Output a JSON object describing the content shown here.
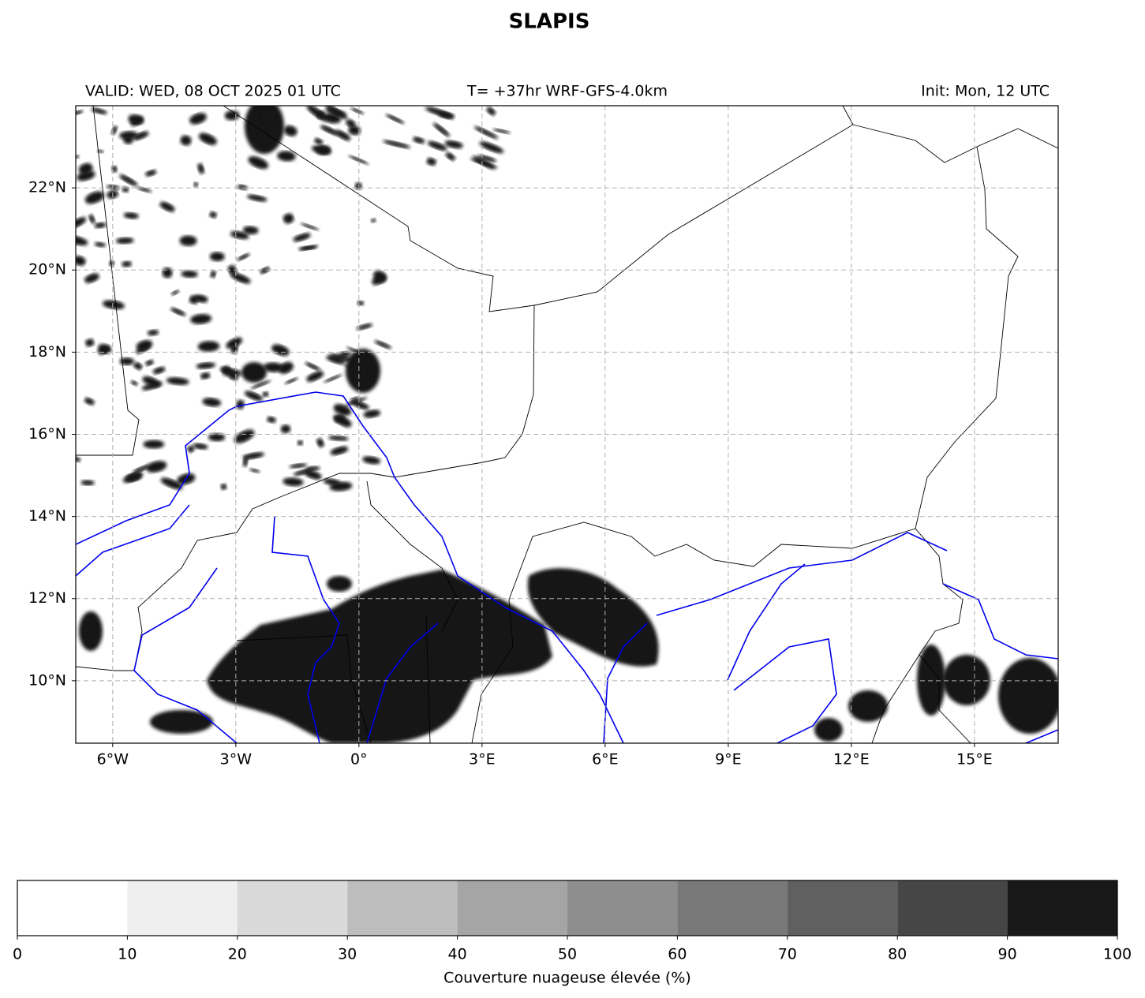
{
  "chart_data": {
    "type": "map",
    "title": "SLAPIS",
    "header_left": "VALID: WED, 08 OCT 2025 01 UTC",
    "header_center": "T= +37hr WRF-GFS-4.0km",
    "header_right": "Init: Mon, 12 UTC",
    "xlim": [
      -6.9,
      17.04
    ],
    "ylim": [
      8.48,
      24.0
    ],
    "xticks": [
      {
        "value": -6,
        "label": "6°W"
      },
      {
        "value": -3,
        "label": "3°W"
      },
      {
        "value": 0,
        "label": "0°"
      },
      {
        "value": 3,
        "label": "3°E"
      },
      {
        "value": 6,
        "label": "6°E"
      },
      {
        "value": 9,
        "label": "9°E"
      },
      {
        "value": 12,
        "label": "12°E"
      },
      {
        "value": 15,
        "label": "15°E"
      }
    ],
    "yticks": [
      {
        "value": 10,
        "label": "10°N"
      },
      {
        "value": 12,
        "label": "12°N"
      },
      {
        "value": 14,
        "label": "14°N"
      },
      {
        "value": 16,
        "label": "16°N"
      },
      {
        "value": 18,
        "label": "18°N"
      },
      {
        "value": 20,
        "label": "20°N"
      },
      {
        "value": 22,
        "label": "22°N"
      }
    ],
    "grid": true,
    "colorbar": {
      "label": "Couverture nuageuse élevée (%)",
      "levels": [
        0,
        10,
        20,
        30,
        40,
        50,
        60,
        70,
        80,
        90,
        100
      ],
      "colors": [
        "#ffffff",
        "#efefef",
        "#d9d9d9",
        "#bdbdbd",
        "#a5a5a5",
        "#8e8e8e",
        "#787878",
        "#606060",
        "#464646",
        "#181818"
      ]
    }
  }
}
